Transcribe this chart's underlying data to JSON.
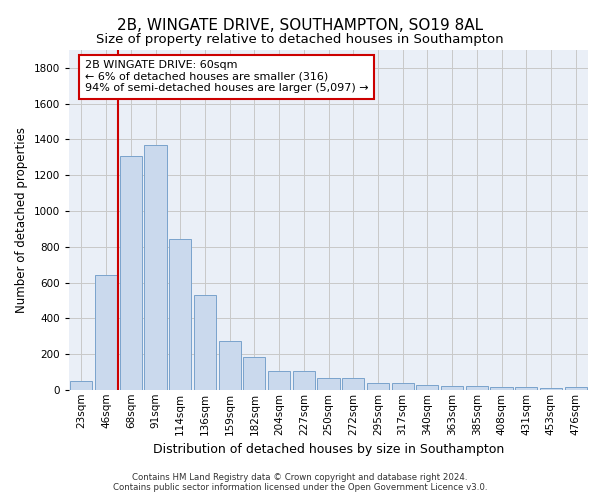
{
  "title": "2B, WINGATE DRIVE, SOUTHAMPTON, SO19 8AL",
  "subtitle": "Size of property relative to detached houses in Southampton",
  "xlabel": "Distribution of detached houses by size in Southampton",
  "ylabel": "Number of detached properties",
  "categories": [
    "23sqm",
    "46sqm",
    "68sqm",
    "91sqm",
    "114sqm",
    "136sqm",
    "159sqm",
    "182sqm",
    "204sqm",
    "227sqm",
    "250sqm",
    "272sqm",
    "295sqm",
    "317sqm",
    "340sqm",
    "363sqm",
    "385sqm",
    "408sqm",
    "431sqm",
    "453sqm",
    "476sqm"
  ],
  "values": [
    50,
    640,
    1310,
    1370,
    845,
    530,
    275,
    185,
    105,
    105,
    65,
    65,
    40,
    40,
    30,
    25,
    20,
    15,
    15,
    10,
    15
  ],
  "bar_color": "#cad9ed",
  "bar_edge_color": "#7aa3cc",
  "vline_color": "#cc0000",
  "vline_pos": 1.5,
  "annotation_box_text": "2B WINGATE DRIVE: 60sqm\n← 6% of detached houses are smaller (316)\n94% of semi-detached houses are larger (5,097) →",
  "annotation_box_facecolor": "white",
  "annotation_box_edgecolor": "#cc0000",
  "ylim": [
    0,
    1900
  ],
  "yticks": [
    0,
    200,
    400,
    600,
    800,
    1000,
    1200,
    1400,
    1600,
    1800
  ],
  "grid_color": "#c8c8c8",
  "bg_color": "#eaeff7",
  "title_fontsize": 11,
  "subtitle_fontsize": 9.5,
  "xlabel_fontsize": 9,
  "ylabel_fontsize": 8.5,
  "tick_fontsize": 7.5,
  "footer_line1": "Contains HM Land Registry data © Crown copyright and database right 2024.",
  "footer_line2": "Contains public sector information licensed under the Open Government Licence v3.0."
}
